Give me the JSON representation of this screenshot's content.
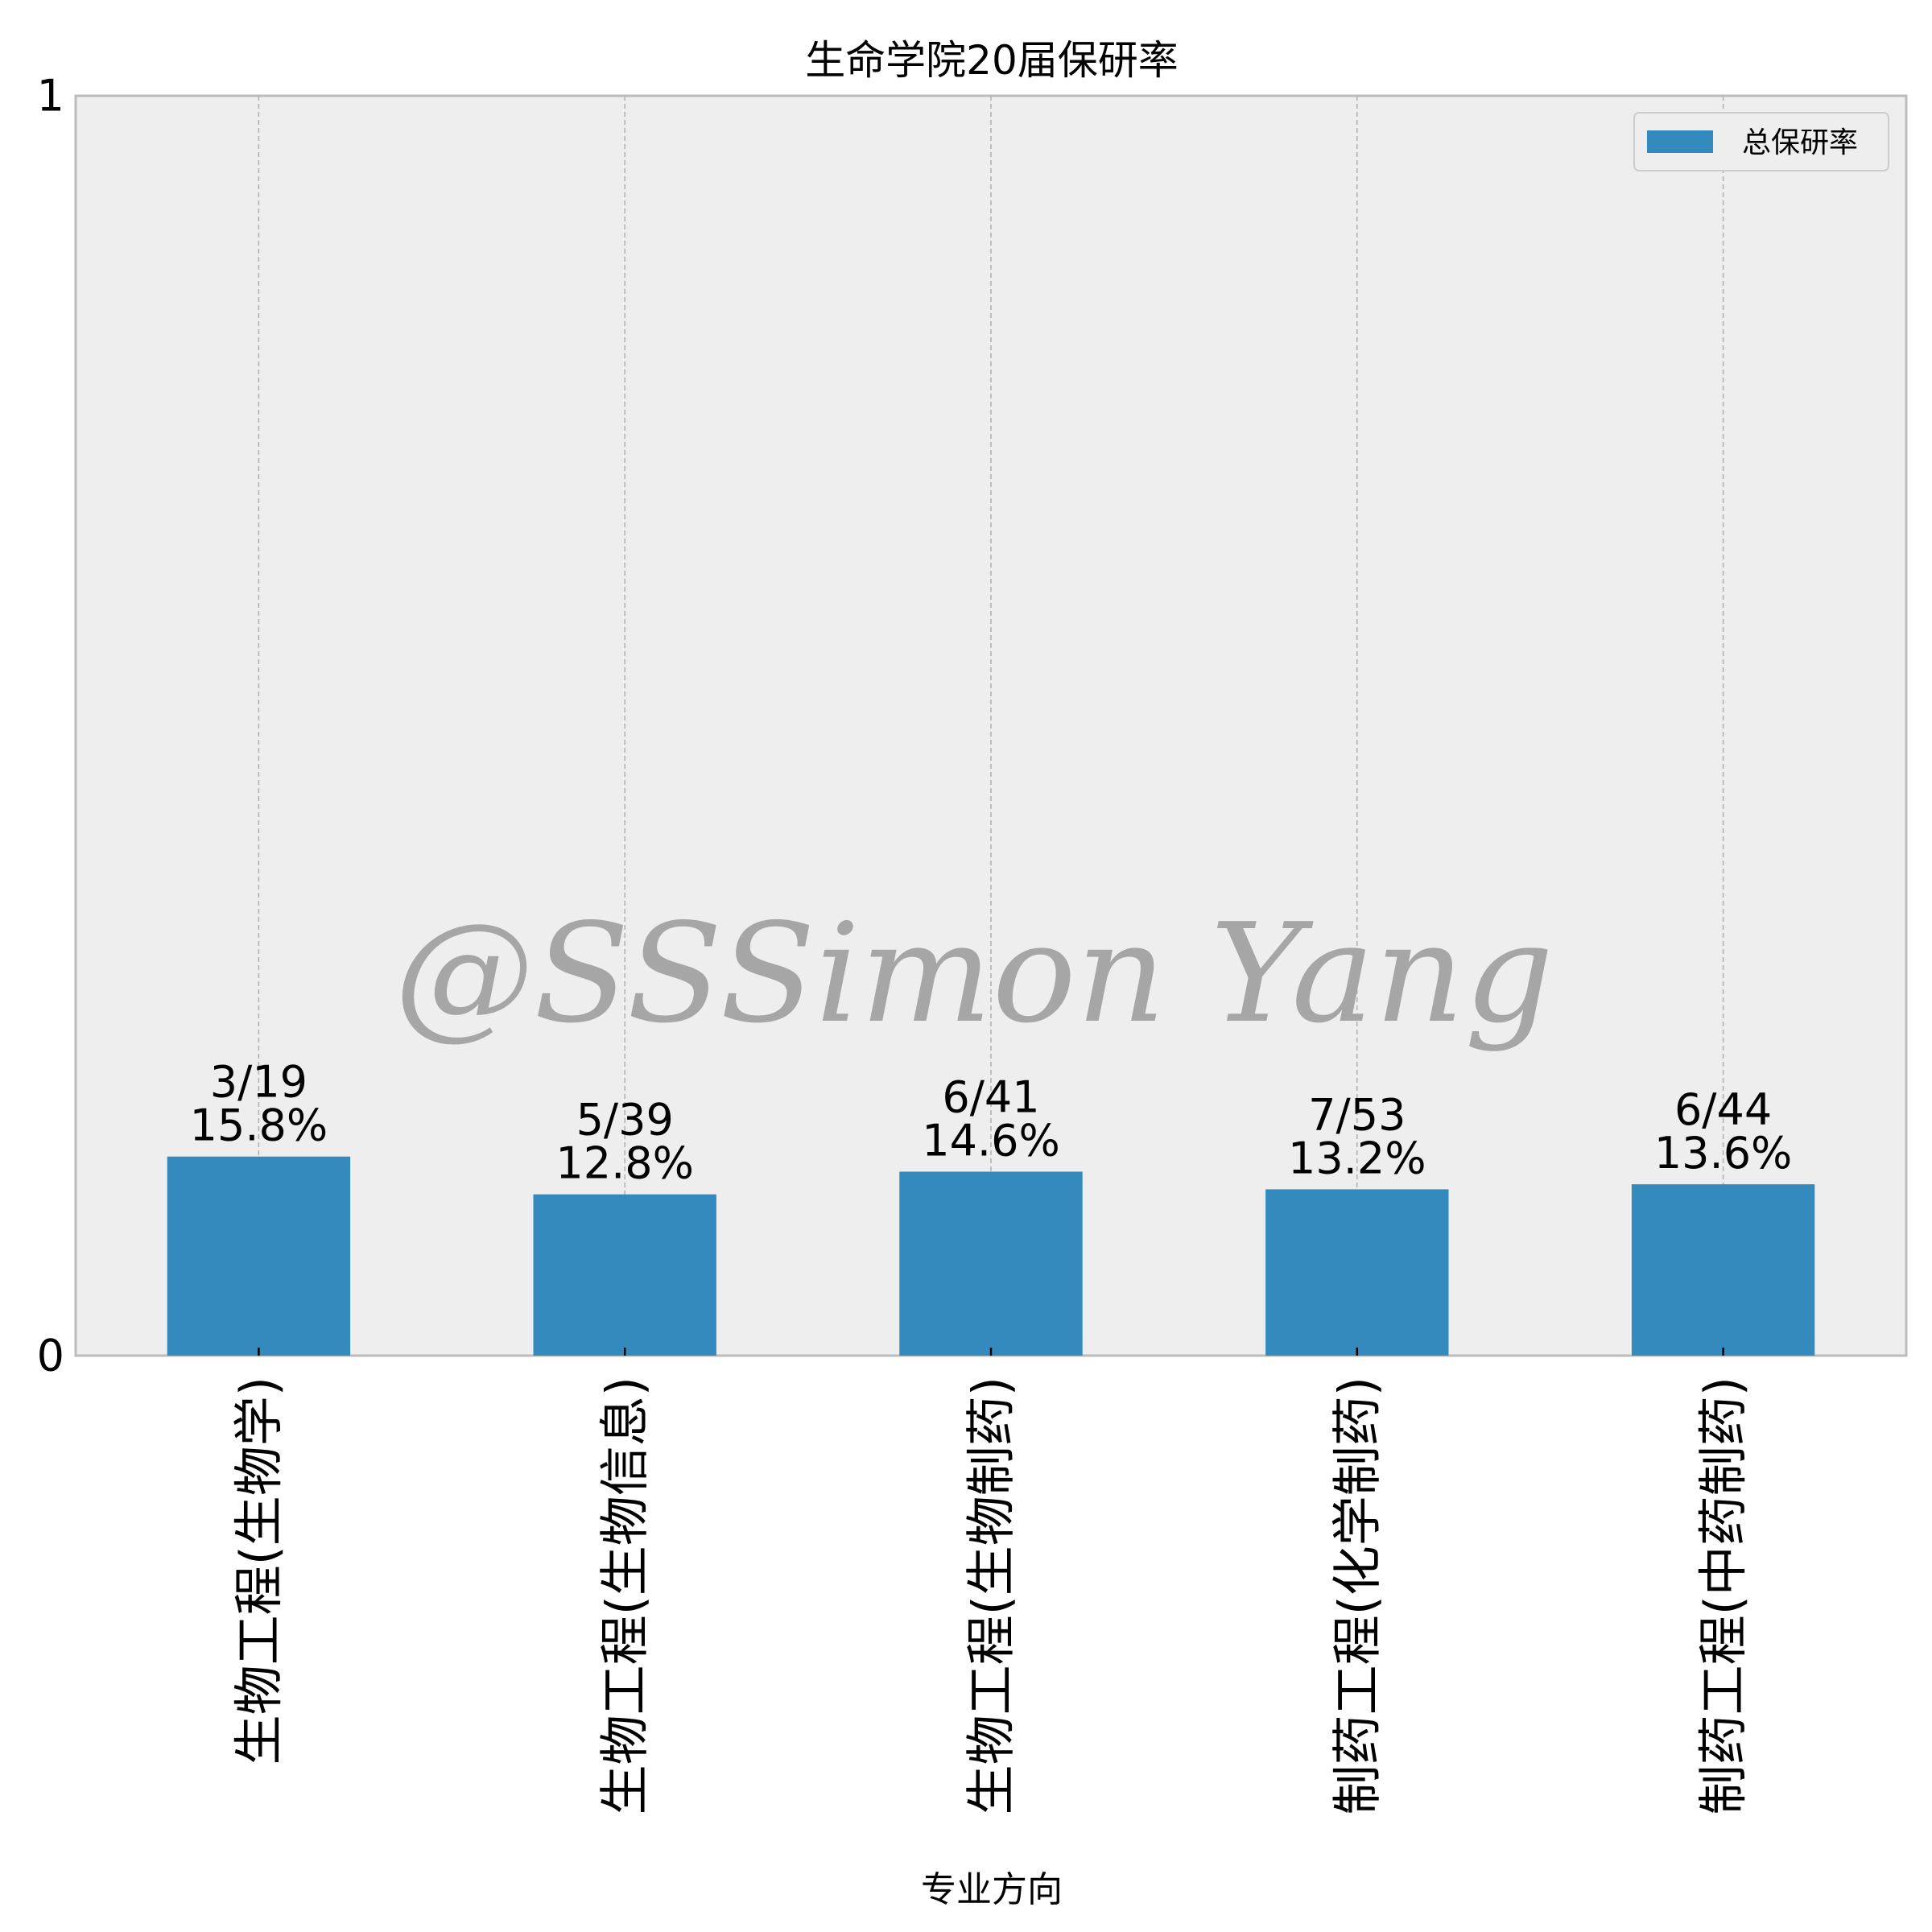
{
  "chart_data": {
    "type": "bar",
    "title": "生命学院20届保研率",
    "xlabel": "专业方向",
    "ylabel": "",
    "ylim": [
      0,
      1
    ],
    "yticks": [
      0,
      1
    ],
    "ytick_labels": [
      "0",
      "1"
    ],
    "categories": [
      "生物工程(生物学)",
      "生物工程(生物信息)",
      "生物工程(生物制药)",
      "制药工程(化学制药)",
      "制药工程(中药制药)"
    ],
    "series": [
      {
        "name": "总保研率",
        "values": [
          0.158,
          0.128,
          0.146,
          0.132,
          0.136
        ],
        "labels": [
          [
            "3/19",
            "15.8%"
          ],
          [
            "5/39",
            "12.8%"
          ],
          [
            "6/41",
            "14.6%"
          ],
          [
            "7/53",
            "13.2%"
          ],
          [
            "6/44",
            "13.6%"
          ]
        ]
      }
    ],
    "legend": "top-right",
    "grid": "vertical dashed",
    "colors": {
      "bar": "#348abd",
      "plot_bg": "#eeeeee",
      "grid": "#b0b0b0",
      "spine": "#bcbcbc"
    },
    "watermark": "@SSSimon Yang"
  }
}
